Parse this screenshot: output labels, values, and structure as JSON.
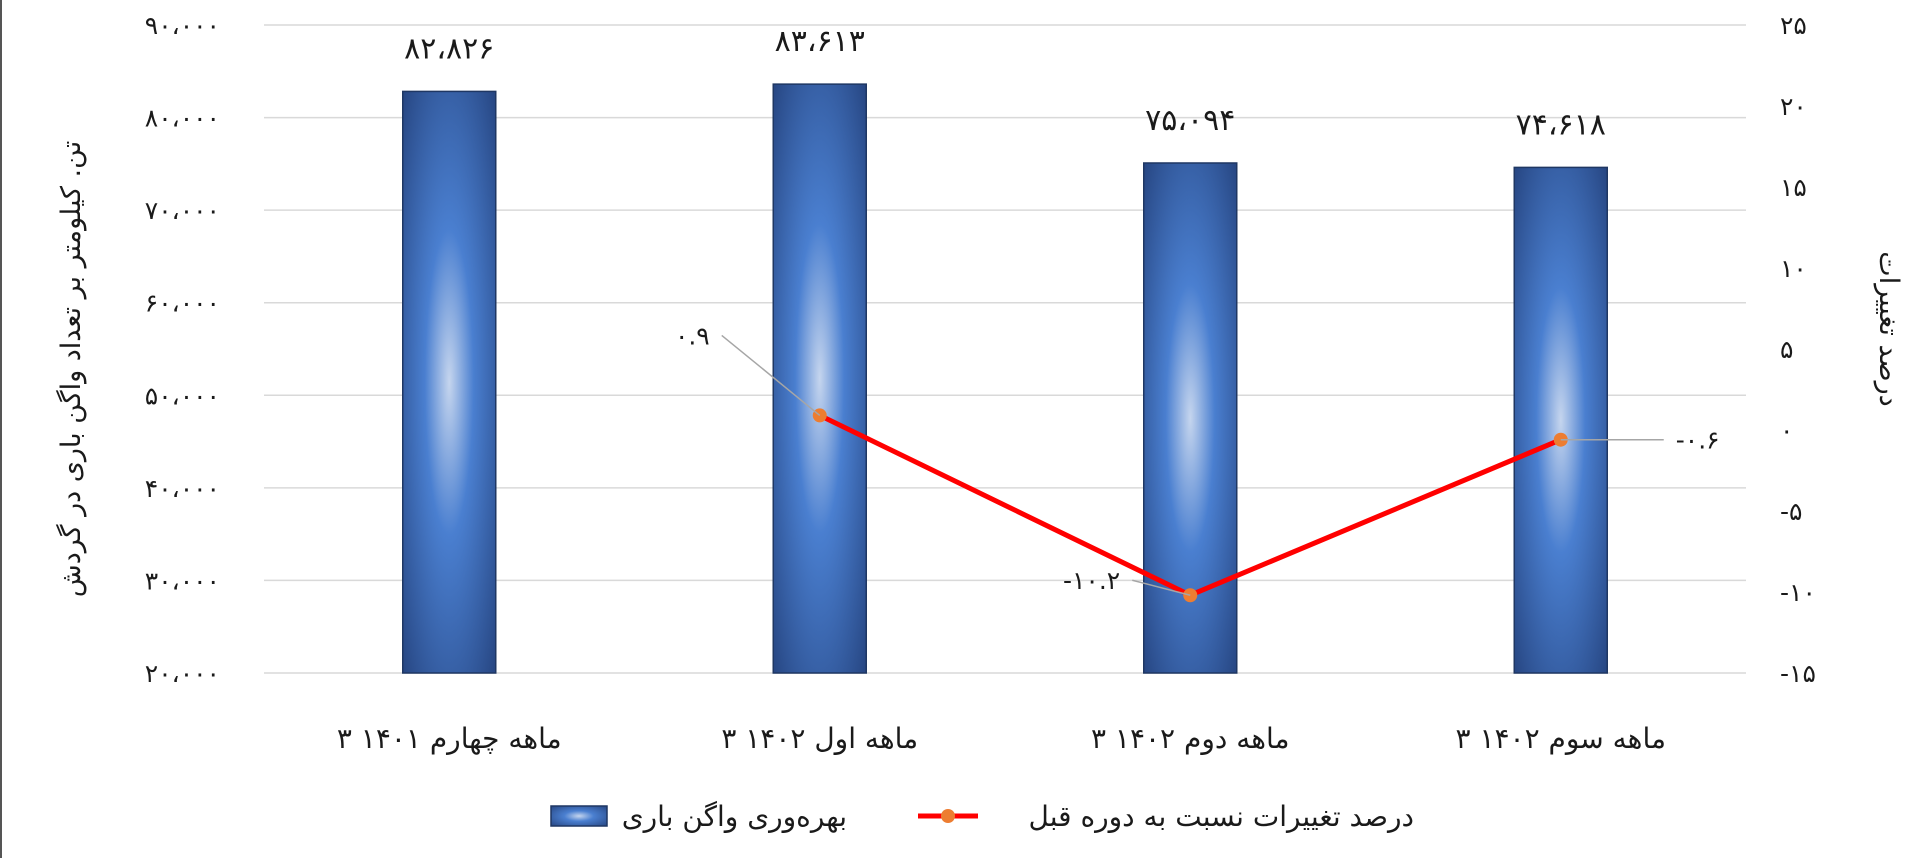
{
  "chart_data": {
    "type": "bar",
    "categories": [
      "۳ ماهه چهارم ۱۴۰۱",
      "۳ ماهه اول ۱۴۰۲",
      "۳ ماهه دوم ۱۴۰۲",
      "۳ ماهه سوم ۱۴۰۲"
    ],
    "series": [
      {
        "name": "بهره‌وری واگن باری",
        "type": "bar",
        "axis": "left",
        "values": [
          82826,
          83613,
          75094,
          74618
        ],
        "value_labels": [
          "۸۲،۸۲۶",
          "۸۳،۶۱۳",
          "۷۵،۰۹۴",
          "۷۴،۶۱۸"
        ],
        "color": "#3f6fbf"
      },
      {
        "name": "درصد تغییرات نسبت به دوره قبل",
        "type": "line",
        "axis": "right",
        "values": [
          null,
          0.9,
          -10.2,
          -0.6
        ],
        "value_labels": [
          "",
          "۰.۹",
          "-۱۰.۲",
          "-۰.۶"
        ],
        "color": "#ff0000",
        "marker_color": "#ed7d31"
      }
    ],
    "y_left": {
      "label": "تن. کیلومتر بر تعداد واگن باری در گردش",
      "lim": [
        20000,
        90000
      ],
      "ticks": [
        20000,
        30000,
        40000,
        50000,
        60000,
        70000,
        80000,
        90000
      ],
      "tick_labels": [
        "۲۰،۰۰۰",
        "۳۰،۰۰۰",
        "۴۰،۰۰۰",
        "۵۰،۰۰۰",
        "۶۰،۰۰۰",
        "۷۰،۰۰۰",
        "۸۰،۰۰۰",
        "۹۰،۰۰۰"
      ]
    },
    "y_right": {
      "label": "درصد تغییرات",
      "lim": [
        -15,
        25
      ],
      "ticks": [
        -15,
        -10,
        -5,
        0,
        5,
        10,
        15,
        20,
        25
      ],
      "tick_labels": [
        "-۱۵",
        "-۱۰",
        "-۵",
        "۰",
        "۵",
        "۱۰",
        "۱۵",
        "۲۰",
        "۲۵"
      ]
    },
    "grid": true,
    "legend": "bottom"
  }
}
